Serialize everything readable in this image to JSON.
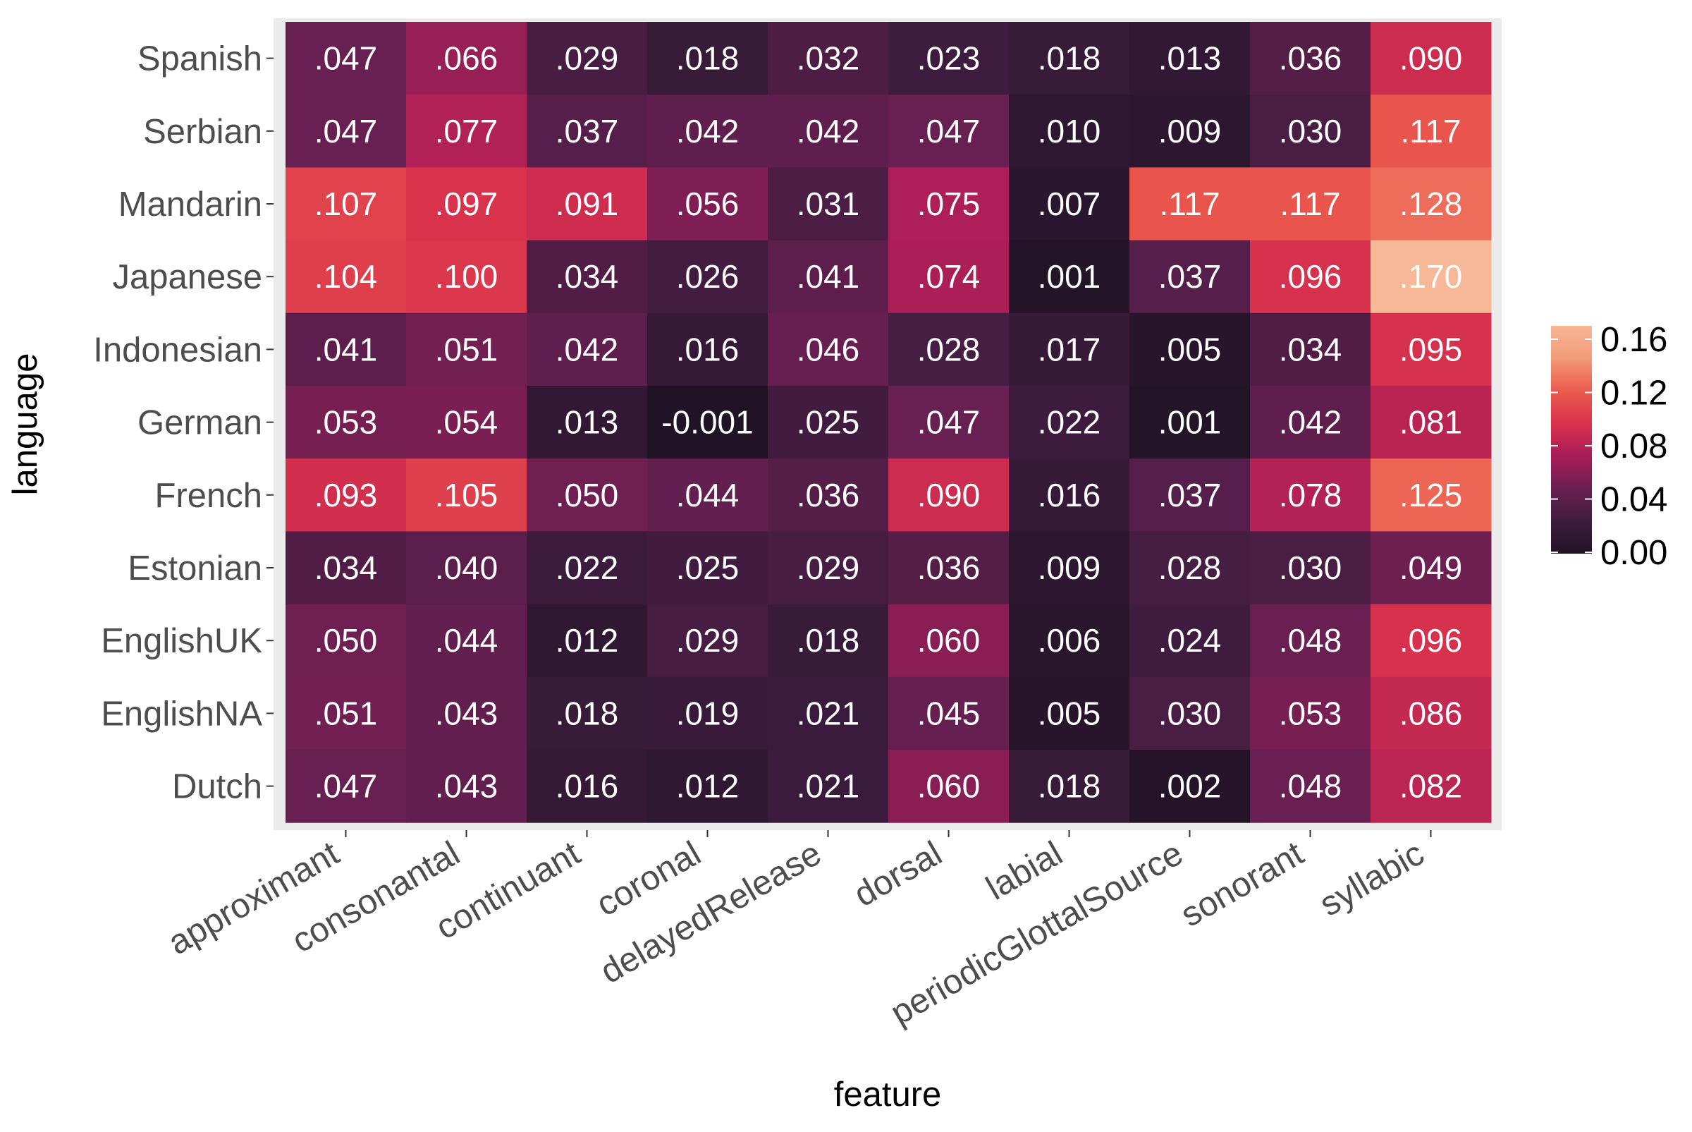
{
  "chart_data": {
    "type": "heatmap",
    "title": "",
    "xlabel": "feature",
    "ylabel": "language",
    "x_categories": [
      "approximant",
      "consonantal",
      "continuant",
      "coronal",
      "delayedRelease",
      "dorsal",
      "labial",
      "periodicGlottalSource",
      "sonorant",
      "syllabic"
    ],
    "y_categories": [
      "Spanish",
      "Serbian",
      "Mandarin",
      "Japanese",
      "Indonesian",
      "German",
      "French",
      "Estonian",
      "EnglishUK",
      "EnglishNA",
      "Dutch"
    ],
    "values": [
      [
        0.047,
        0.066,
        0.029,
        0.018,
        0.032,
        0.023,
        0.018,
        0.013,
        0.036,
        0.09
      ],
      [
        0.047,
        0.077,
        0.037,
        0.042,
        0.042,
        0.047,
        0.01,
        0.009,
        0.03,
        0.117
      ],
      [
        0.107,
        0.097,
        0.091,
        0.056,
        0.031,
        0.075,
        0.007,
        0.117,
        0.117,
        0.128
      ],
      [
        0.104,
        0.1,
        0.034,
        0.026,
        0.041,
        0.074,
        0.001,
        0.037,
        0.096,
        0.17
      ],
      [
        0.041,
        0.051,
        0.042,
        0.016,
        0.046,
        0.028,
        0.017,
        0.005,
        0.034,
        0.095
      ],
      [
        0.053,
        0.054,
        0.013,
        -0.001,
        0.025,
        0.047,
        0.022,
        0.001,
        0.042,
        0.081
      ],
      [
        0.093,
        0.105,
        0.05,
        0.044,
        0.036,
        0.09,
        0.016,
        0.037,
        0.078,
        0.125
      ],
      [
        0.034,
        0.04,
        0.022,
        0.025,
        0.029,
        0.036,
        0.009,
        0.028,
        0.03,
        0.049
      ],
      [
        0.05,
        0.044,
        0.012,
        0.029,
        0.018,
        0.06,
        0.006,
        0.024,
        0.048,
        0.096
      ],
      [
        0.051,
        0.043,
        0.018,
        0.019,
        0.021,
        0.045,
        0.005,
        0.03,
        0.053,
        0.086
      ],
      [
        0.047,
        0.043,
        0.016,
        0.012,
        0.021,
        0.06,
        0.018,
        0.002,
        0.048,
        0.082
      ]
    ],
    "cell_labels": [
      [
        ".047",
        ".066",
        ".029",
        ".018",
        ".032",
        ".023",
        ".018",
        ".013",
        ".036",
        ".090"
      ],
      [
        ".047",
        ".077",
        ".037",
        ".042",
        ".042",
        ".047",
        ".010",
        ".009",
        ".030",
        ".117"
      ],
      [
        ".107",
        ".097",
        ".091",
        ".056",
        ".031",
        ".075",
        ".007",
        ".117",
        ".117",
        ".128"
      ],
      [
        ".104",
        ".100",
        ".034",
        ".026",
        ".041",
        ".074",
        ".001",
        ".037",
        ".096",
        ".170"
      ],
      [
        ".041",
        ".051",
        ".042",
        ".016",
        ".046",
        ".028",
        ".017",
        ".005",
        ".034",
        ".095"
      ],
      [
        ".053",
        ".054",
        ".013",
        "-0.001",
        ".025",
        ".047",
        ".022",
        ".001",
        ".042",
        ".081"
      ],
      [
        ".093",
        ".105",
        ".050",
        ".044",
        ".036",
        ".090",
        ".016",
        ".037",
        ".078",
        ".125"
      ],
      [
        ".034",
        ".040",
        ".022",
        ".025",
        ".029",
        ".036",
        ".009",
        ".028",
        ".030",
        ".049"
      ],
      [
        ".050",
        ".044",
        ".012",
        ".029",
        ".018",
        ".060",
        ".006",
        ".024",
        ".048",
        ".096"
      ],
      [
        ".051",
        ".043",
        ".018",
        ".019",
        ".021",
        ".045",
        ".005",
        ".030",
        ".053",
        ".086"
      ],
      [
        ".047",
        ".043",
        ".016",
        ".012",
        ".021",
        ".060",
        ".018",
        ".002",
        ".048",
        ".082"
      ]
    ],
    "colorbar": {
      "range": [
        -0.001,
        0.17
      ],
      "ticks": [
        0.0,
        0.04,
        0.08,
        0.12,
        0.16
      ],
      "tick_labels": [
        "0.00",
        "0.04",
        "0.08",
        "0.12",
        "0.16"
      ],
      "colors": [
        "#211326",
        "#3e1c3f",
        "#6a1f52",
        "#a81d57",
        "#d9324d",
        "#ec5b4d",
        "#f29a7a",
        "#f6b896"
      ]
    },
    "legend_position": "right",
    "grid": true,
    "panel_background": "#ebebeb",
    "label_color": "#ffffff",
    "axis_text_color": "#4d4d4d"
  }
}
